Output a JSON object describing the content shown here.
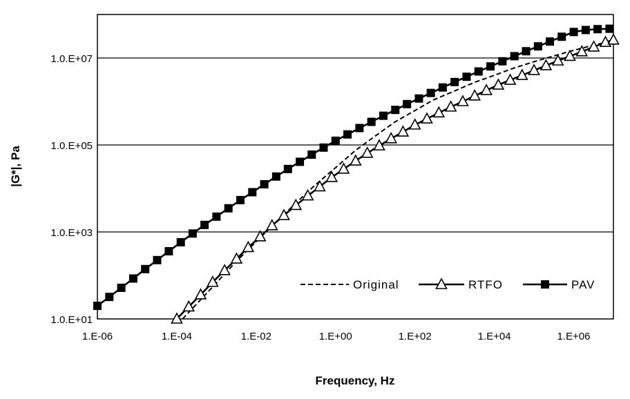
{
  "chart_data": {
    "type": "line",
    "title": "",
    "xlabel": "Frequency, Hz",
    "ylabel": "|G*|, Pa",
    "x_scale": "log",
    "y_scale": "log",
    "xlim": [
      1e-06,
      10000000.0
    ],
    "ylim": [
      10,
      100000000.0
    ],
    "x_ticks": [
      1e-06,
      0.0001,
      0.01,
      1,
      100,
      10000.0,
      1000000.0
    ],
    "x_tick_labels": [
      "1.E-06",
      "1.E-04",
      "1.E-02",
      "1.E+00",
      "1.E+02",
      "1.E+04",
      "1.E+06"
    ],
    "y_ticks": [
      10,
      1000,
      100000,
      10000000
    ],
    "y_tick_labels": [
      "1.0.E+01",
      "1.0.E+03",
      "1.0.E+05",
      "1.0.E+07"
    ],
    "grid": "horizontal",
    "legend_position": "bottom-right",
    "series": [
      {
        "name": "Original",
        "line_style": "dashed",
        "marker": "none",
        "color": "#000000",
        "x": [
          0.00014,
          0.0003,
          0.001,
          0.003,
          0.01,
          0.03,
          0.1,
          0.3,
          1,
          3,
          10,
          30,
          100,
          300,
          1000,
          3000,
          10000,
          30000,
          100000,
          300000,
          1000000,
          3000000,
          10000000
        ],
        "y": [
          10,
          21,
          68,
          200,
          600,
          1600,
          4600,
          11800,
          30000,
          72000,
          160000,
          330000,
          620000,
          1100000,
          1750000,
          2700000,
          4000000,
          5800000,
          8200000,
          11000000,
          15000000,
          19500000,
          25000000
        ]
      },
      {
        "name": "RTFO",
        "line_style": "solid",
        "marker": "open-triangle",
        "color": "#000000",
        "x": [
          0.0001,
          0.0002,
          0.0004,
          0.0008,
          0.0016,
          0.0032,
          0.0063,
          0.0126,
          0.0251,
          0.05,
          0.1,
          0.2,
          0.4,
          0.8,
          1.6,
          3.2,
          6.3,
          12.6,
          25.1,
          50,
          100,
          200,
          400,
          800,
          1600,
          3200,
          6300,
          12600,
          25100,
          50000,
          100000,
          200000,
          400000,
          800000,
          1600000,
          3200000,
          6300000,
          10000000
        ],
        "y": [
          10,
          19,
          36,
          70,
          130,
          240,
          440,
          780,
          1400,
          2400,
          4100,
          6800,
          11000,
          18000,
          28000,
          43000,
          65000,
          96000,
          140000,
          200000,
          290000,
          400000,
          550000,
          750000,
          1000000,
          1350000,
          1800000,
          2400000,
          3100000,
          4000000,
          5200000,
          6700000,
          8600000,
          11000000,
          14000000,
          18000000,
          23000000,
          26000000
        ]
      },
      {
        "name": "PAV",
        "line_style": "solid",
        "marker": "filled-square",
        "color": "#000000",
        "x": [
          1e-06,
          2e-06,
          4e-06,
          8e-06,
          1.6e-05,
          3.2e-05,
          6.3e-05,
          0.000126,
          0.000251,
          0.0005,
          0.001,
          0.002,
          0.004,
          0.008,
          0.016,
          0.032,
          0.063,
          0.126,
          0.251,
          0.5,
          1,
          2,
          4,
          8,
          16,
          32,
          63,
          126,
          251,
          500,
          1000,
          2000,
          4000,
          8000,
          16000,
          32000,
          63000,
          126000,
          251000,
          500000,
          1000000,
          2000000,
          4000000,
          8000000
        ],
        "y": [
          20,
          32,
          52,
          85,
          140,
          225,
          360,
          580,
          920,
          1450,
          2250,
          3500,
          5400,
          8200,
          12500,
          18800,
          28000,
          41000,
          60000,
          87000,
          125000,
          175000,
          245000,
          340000,
          470000,
          640000,
          870000,
          1170000,
          1570000,
          2100000,
          2800000,
          3700000,
          4900000,
          6400000,
          8400000,
          11000000,
          14300000,
          18500000,
          23900000,
          30800000,
          39600000,
          44000000,
          46000000,
          47000000
        ]
      }
    ]
  }
}
